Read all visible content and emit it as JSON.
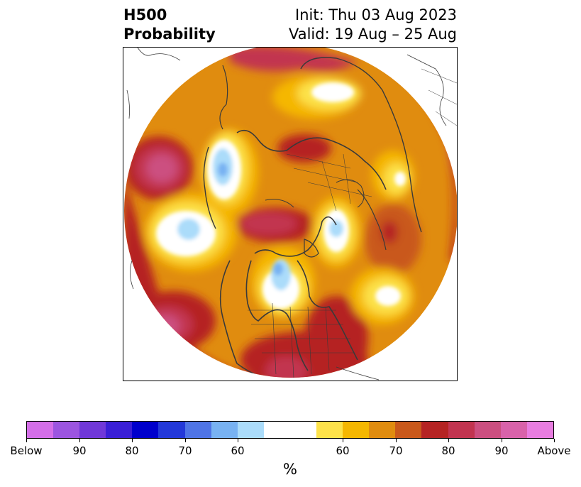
{
  "title": {
    "left_line1": "H500",
    "left_line2": "Probability",
    "right_line1": "Init: Thu 03 Aug 2023",
    "right_line2": "Valid: 19 Aug – 25 Aug"
  },
  "colorbar": {
    "label": "%",
    "ticks": [
      "Below",
      "90",
      "80",
      "70",
      "60",
      "60",
      "70",
      "80",
      "90",
      "Above"
    ],
    "below_colors": [
      "#d46ee8",
      "#9c55e0",
      "#7038d8",
      "#3a1fd6",
      "#0000cc",
      "#2338d9",
      "#4f74e6",
      "#78b2f2",
      "#abdcfa"
    ],
    "neutral_color": "#ffffff",
    "above_colors": [
      "#fde24a",
      "#f5b701",
      "#e08c0f",
      "#c9581b",
      "#b52323",
      "#c23450",
      "#cc4f80",
      "#d962aa",
      "#e87de0"
    ]
  },
  "map": {
    "projection": "north-polar-stereographic",
    "colors": {
      "ocean_mid": "#e08c0f",
      "yellow": "#fde24a",
      "gold": "#f5b701",
      "orange": "#c9581b",
      "red": "#b52323",
      "crimson": "#c23450",
      "pink": "#cc4f80",
      "light_blue": "#abdcfa",
      "mid_blue": "#78b2f2",
      "coast": "#3a3a3a"
    }
  }
}
